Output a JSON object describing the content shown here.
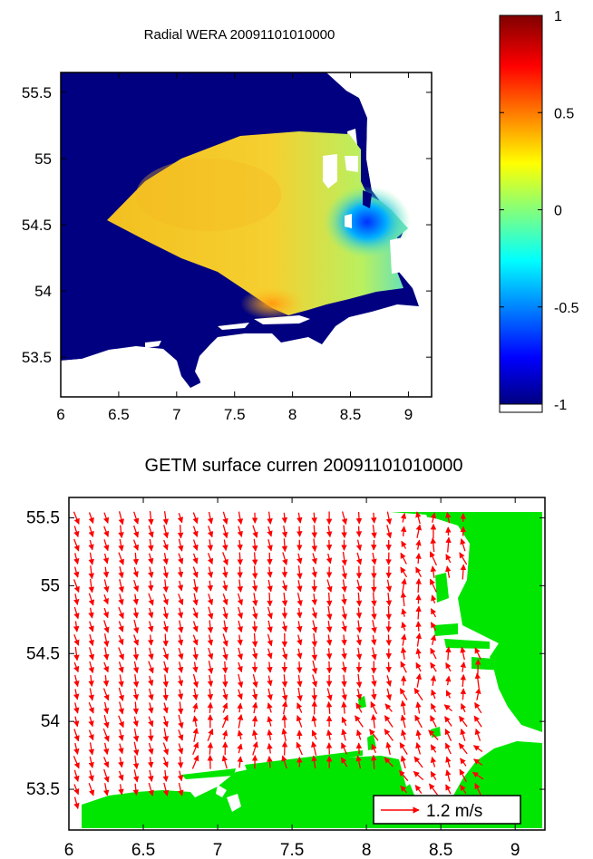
{
  "chart_data": [
    {
      "type": "heatmap",
      "title": "Radial WERA 20091101010000",
      "xlim": [
        6,
        9.2
      ],
      "ylim": [
        53.2,
        55.65
      ],
      "x_ticks": [
        "6",
        "6.5",
        "7",
        "7.5",
        "8",
        "8.5",
        "9"
      ],
      "y_ticks": [
        "53.5",
        "54",
        "54.5",
        "55",
        "55.5"
      ],
      "colorbar": {
        "range": [
          -1,
          1
        ],
        "ticks": [
          "1",
          "0.5",
          "0",
          "-0.5",
          "-1"
        ],
        "colormap": "jet"
      },
      "background_value": -1,
      "field_polygon_lonlat": [
        [
          6.4,
          54.5
        ],
        [
          7.0,
          54.95
        ],
        [
          7.6,
          55.15
        ],
        [
          8.2,
          55.18
        ],
        [
          8.6,
          55.1
        ],
        [
          8.65,
          54.5
        ],
        [
          8.7,
          54.2
        ],
        [
          8.4,
          54.0
        ],
        [
          7.95,
          53.85
        ],
        [
          7.4,
          54.05
        ],
        [
          6.9,
          54.3
        ]
      ],
      "field_approx_values": [
        {
          "lon": 7.0,
          "lat": 54.7,
          "value": 0.3
        },
        {
          "lon": 7.8,
          "lat": 54.9,
          "value": 0.35
        },
        {
          "lon": 7.5,
          "lat": 54.3,
          "value": 0.2
        },
        {
          "lon": 8.0,
          "lat": 53.95,
          "value": 0.4
        },
        {
          "lon": 8.5,
          "lat": 54.5,
          "value": -0.5
        },
        {
          "lon": 8.6,
          "lat": 54.3,
          "value": -0.3
        }
      ]
    },
    {
      "type": "scatter",
      "subtype": "vector-field",
      "title": "GETM surface curren 20091101010000",
      "xlim": [
        6,
        9.2
      ],
      "ylim": [
        53.2,
        55.65
      ],
      "x_ticks": [
        "6",
        "6.5",
        "7",
        "7.5",
        "8",
        "8.5",
        "9"
      ],
      "y_ticks": [
        "53.5",
        "54",
        "54.5",
        "55",
        "55.5"
      ],
      "arrow_color": "#ff0000",
      "land_color": "#00e600",
      "legend": {
        "text": "1.2  m/s",
        "placement": "bottom-right"
      },
      "vectors_summary": "Mostly southward/north-south oriented flow over the offshore area, turning northward/north-eastward near the coast.",
      "approx_direction_deg": 200,
      "approx_speed": 0.3
    }
  ],
  "colors": {
    "land_top": "#ffffff",
    "sea_background_top": "#000080",
    "land_bottom": "#00e600",
    "arrows": "#ff0000"
  }
}
